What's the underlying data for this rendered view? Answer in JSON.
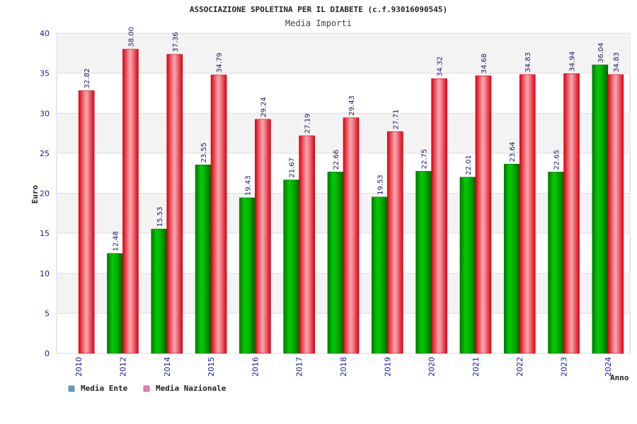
{
  "chart_data": {
    "type": "bar",
    "title": "ASSOCIAZIONE SPOLETINA PER IL DIABETE (c.f.93016090545)",
    "subtitle": "Media Importi",
    "xlabel": "Anno",
    "ylabel": "Euro",
    "ylim": [
      0,
      40
    ],
    "yticks": [
      0,
      5,
      10,
      15,
      20,
      25,
      30,
      35,
      40
    ],
    "grid": true,
    "legend_position": "bottom-left",
    "categories": [
      "2010",
      "2012",
      "2014",
      "2015",
      "2016",
      "2017",
      "2018",
      "2019",
      "2020",
      "2021",
      "2022",
      "2023",
      "2024"
    ],
    "series": [
      {
        "name": "Media Ente",
        "color": "#00b400",
        "legend_color": "#5b9bd5",
        "values": [
          null,
          12.48,
          15.53,
          23.55,
          19.43,
          21.67,
          22.66,
          19.53,
          22.75,
          22.01,
          23.64,
          22.65,
          36.04
        ],
        "labels": [
          "",
          "12.48",
          "15.53",
          "23.55",
          "19.43",
          "21.67",
          "22.66",
          "19.53",
          "22.75",
          "22.01",
          "23.64",
          "22.65",
          "36.04"
        ]
      },
      {
        "name": "Media Nazionale",
        "color": "#ee1122",
        "legend_color": "#e87fb4",
        "values": [
          32.82,
          38.0,
          37.36,
          34.79,
          29.24,
          27.19,
          29.43,
          27.71,
          34.32,
          34.68,
          34.83,
          34.94,
          34.83
        ],
        "labels": [
          "32.82",
          "38.00",
          "37.36",
          "34.79",
          "29.24",
          "27.19",
          "29.43",
          "27.71",
          "34.32",
          "34.68",
          "34.83",
          "34.94",
          "34.83"
        ]
      }
    ]
  }
}
